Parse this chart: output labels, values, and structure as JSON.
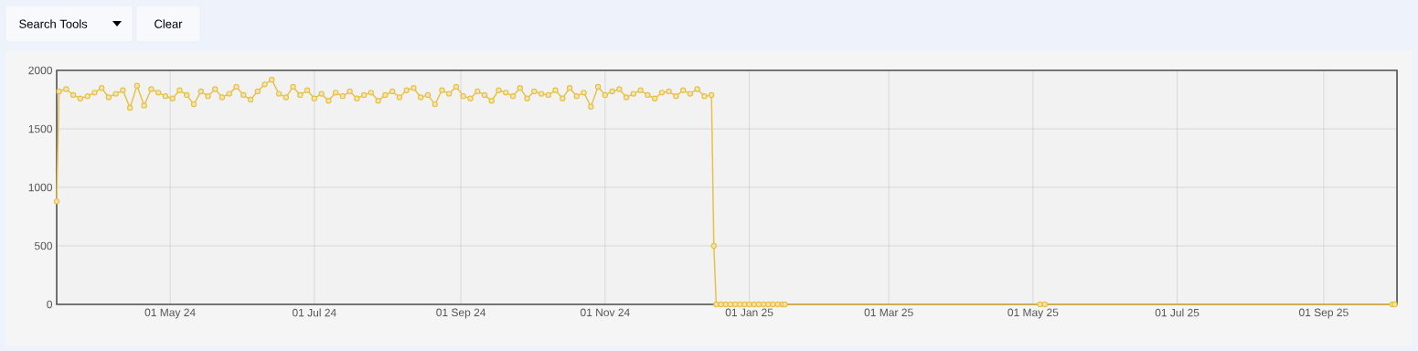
{
  "chart_data": {
    "type": "line",
    "annotations": [
      "Search Tools",
      "Clear"
    ],
    "x": [
      "2024-03-14",
      "2024-03-15",
      "2024-03-18",
      "2024-03-21",
      "2024-03-24",
      "2024-03-27",
      "2024-03-30",
      "2024-04-02",
      "2024-04-05",
      "2024-04-08",
      "2024-04-11",
      "2024-04-14",
      "2024-04-17",
      "2024-04-20",
      "2024-04-23",
      "2024-04-26",
      "2024-04-29",
      "2024-05-02",
      "2024-05-05",
      "2024-05-08",
      "2024-05-11",
      "2024-05-14",
      "2024-05-17",
      "2024-05-20",
      "2024-05-23",
      "2024-05-26",
      "2024-05-29",
      "2024-06-01",
      "2024-06-04",
      "2024-06-07",
      "2024-06-10",
      "2024-06-13",
      "2024-06-16",
      "2024-06-19",
      "2024-06-22",
      "2024-06-25",
      "2024-06-28",
      "2024-07-01",
      "2024-07-04",
      "2024-07-07",
      "2024-07-10",
      "2024-07-13",
      "2024-07-16",
      "2024-07-19",
      "2024-07-22",
      "2024-07-25",
      "2024-07-28",
      "2024-07-31",
      "2024-08-03",
      "2024-08-06",
      "2024-08-09",
      "2024-08-12",
      "2024-08-15",
      "2024-08-18",
      "2024-08-21",
      "2024-08-24",
      "2024-08-27",
      "2024-08-30",
      "2024-09-02",
      "2024-09-05",
      "2024-09-08",
      "2024-09-11",
      "2024-09-14",
      "2024-09-17",
      "2024-09-20",
      "2024-09-23",
      "2024-09-26",
      "2024-09-29",
      "2024-10-02",
      "2024-10-05",
      "2024-10-08",
      "2024-10-11",
      "2024-10-14",
      "2024-10-17",
      "2024-10-20",
      "2024-10-23",
      "2024-10-26",
      "2024-10-29",
      "2024-11-01",
      "2024-11-04",
      "2024-11-07",
      "2024-11-10",
      "2024-11-13",
      "2024-11-16",
      "2024-11-19",
      "2024-11-22",
      "2024-11-25",
      "2024-11-28",
      "2024-12-01",
      "2024-12-04",
      "2024-12-07",
      "2024-12-10",
      "2024-12-13",
      "2024-12-16",
      "2024-12-17",
      "2024-12-18",
      "2024-12-20",
      "2024-12-22",
      "2024-12-24",
      "2024-12-26",
      "2024-12-28",
      "2024-12-30",
      "2025-01-01",
      "2025-01-03",
      "2025-01-05",
      "2025-01-07",
      "2025-01-09",
      "2025-01-11",
      "2025-01-13",
      "2025-01-15",
      "2025-01-16",
      "2025-05-04",
      "2025-05-06",
      "2025-09-30",
      "2025-10-01"
    ],
    "series": [
      {
        "color": "#e6c24a",
        "values": [
          880,
          1820,
          1840,
          1790,
          1760,
          1780,
          1810,
          1850,
          1770,
          1800,
          1830,
          1680,
          1870,
          1700,
          1840,
          1810,
          1780,
          1760,
          1830,
          1790,
          1710,
          1820,
          1780,
          1840,
          1770,
          1800,
          1860,
          1790,
          1750,
          1820,
          1880,
          1920,
          1800,
          1770,
          1860,
          1790,
          1830,
          1760,
          1800,
          1740,
          1810,
          1780,
          1820,
          1760,
          1790,
          1810,
          1740,
          1790,
          1820,
          1770,
          1830,
          1850,
          1770,
          1790,
          1710,
          1830,
          1800,
          1860,
          1780,
          1760,
          1820,
          1790,
          1740,
          1830,
          1810,
          1780,
          1850,
          1760,
          1820,
          1800,
          1790,
          1830,
          1760,
          1850,
          1780,
          1810,
          1690,
          1860,
          1790,
          1820,
          1840,
          1770,
          1800,
          1830,
          1790,
          1760,
          1810,
          1820,
          1780,
          1830,
          1800,
          1840,
          1780,
          1790,
          500,
          0,
          0,
          0,
          0,
          0,
          0,
          0,
          0,
          0,
          0,
          0,
          0,
          0,
          0,
          0,
          0,
          0,
          0,
          0,
          0
        ]
      }
    ],
    "xlim": [
      "2024-03-14",
      "2025-10-02"
    ],
    "xticks": [
      {
        "value": "2024-05-01",
        "label": "01 May 24"
      },
      {
        "value": "2024-07-01",
        "label": "01 Jul 24"
      },
      {
        "value": "2024-09-01",
        "label": "01 Sep 24"
      },
      {
        "value": "2024-11-01",
        "label": "01 Nov 24"
      },
      {
        "value": "2025-01-01",
        "label": "01 Jan 25"
      },
      {
        "value": "2025-03-01",
        "label": "01 Mar 25"
      },
      {
        "value": "2025-05-01",
        "label": "01 May 25"
      },
      {
        "value": "2025-07-01",
        "label": "01 Jul 25"
      },
      {
        "value": "2025-09-01",
        "label": "01 Sep 25"
      }
    ],
    "ylim": [
      0,
      2000
    ],
    "yticks": [
      0,
      500,
      1000,
      1500,
      2000
    ],
    "grid": true,
    "marker": "circle",
    "line_style": "solid"
  }
}
